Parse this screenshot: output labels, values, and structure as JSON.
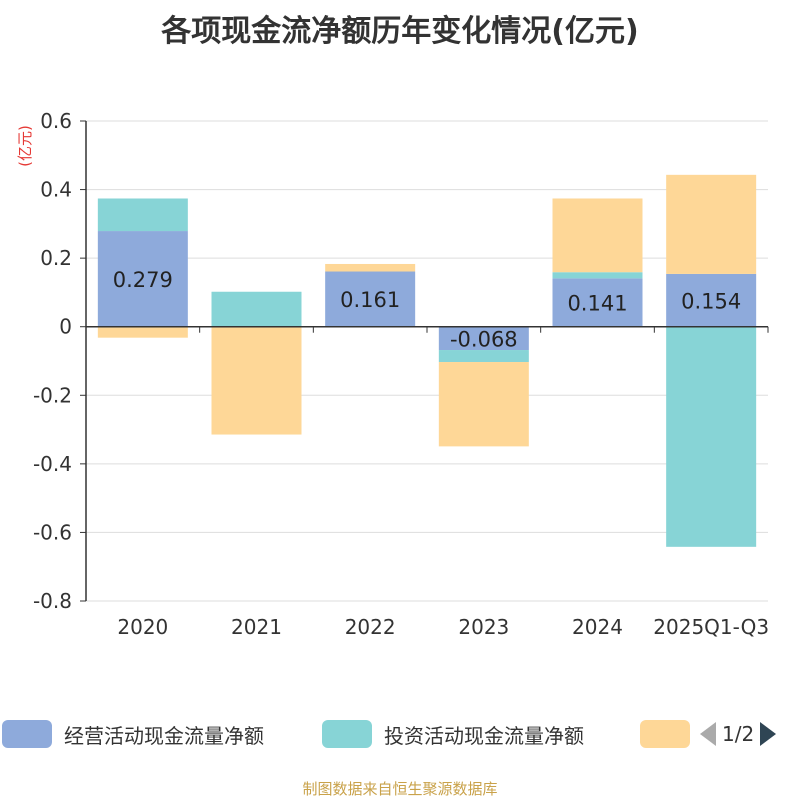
{
  "chart_data": {
    "type": "bar",
    "stacked": true,
    "title": "各项现金流净额历年变化情况(亿元)",
    "ylabel": "(亿元)",
    "ylim": [
      -0.8,
      0.6
    ],
    "yticks": [
      0.6,
      0.4,
      0.2,
      0,
      -0.2,
      -0.4,
      -0.6,
      -0.8
    ],
    "ytick_labels": [
      "0.6",
      "0.4",
      "0.2",
      "0",
      "-0.2",
      "-0.4",
      "-0.6",
      "-0.8"
    ],
    "grid": true,
    "legend_position": "bottom",
    "categories": [
      "2020",
      "2021",
      "2022",
      "2023",
      "2024",
      "2025Q1-Q3"
    ],
    "series": [
      {
        "name": "经营活动现金流量净额",
        "color": "#8eaadb",
        "values": [
          0.279,
          -0.0005,
          0.161,
          -0.068,
          0.141,
          0.154
        ],
        "labels": [
          "0.279",
          "",
          "0.161",
          "-0.068",
          "0.141",
          "0.154"
        ]
      },
      {
        "name": "投资活动现金流量净额",
        "color": "#87d4d6",
        "values": [
          0.095,
          0.102,
          0.0,
          -0.035,
          0.018,
          -0.642
        ],
        "labels": [
          "",
          "",
          "",
          "",
          "",
          ""
        ]
      },
      {
        "name": "",
        "color": "#fed797",
        "values": [
          -0.032,
          -0.314,
          0.022,
          -0.246,
          0.215,
          0.289
        ],
        "labels": [
          "",
          "",
          "",
          "",
          "",
          ""
        ]
      }
    ]
  },
  "legend": {
    "pager_text": "1/2"
  },
  "source_note": "制图数据来自恒生聚源数据库"
}
